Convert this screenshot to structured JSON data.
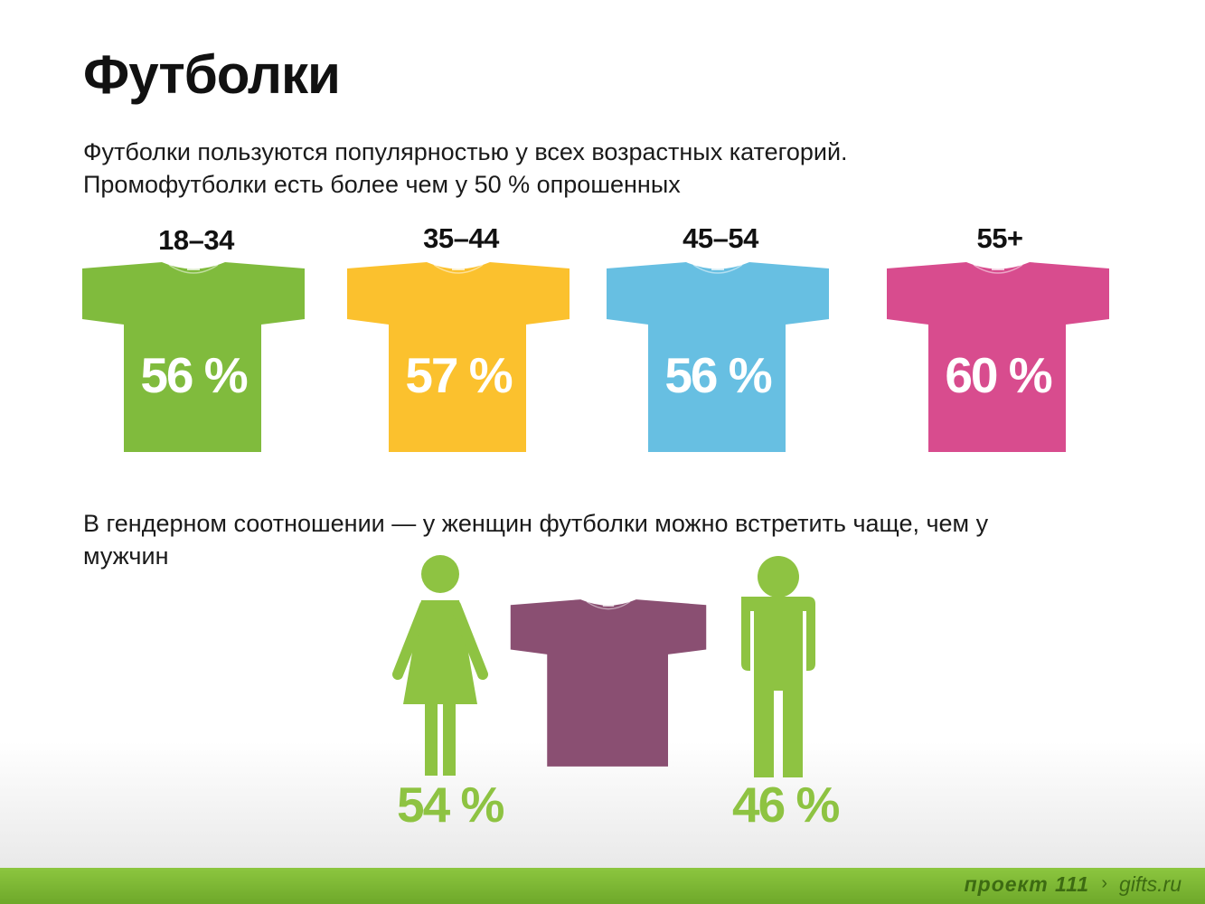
{
  "title": "Футболки",
  "intro": {
    "line1": "Футболки пользуются популярностью у всех возрастных категорий.",
    "line2": "Промофутболки есть более чем у 50 % опрошенных"
  },
  "colors": {
    "green": "#80bb3d",
    "yellow": "#fbc12e",
    "blue": "#67bfe2",
    "pink": "#d84c8e",
    "purple": "#8a4f72",
    "figure_green": "#8ec342"
  },
  "chart_data": {
    "type": "bar",
    "categories": [
      "18–34",
      "35–44",
      "45–54",
      "55+"
    ],
    "values": [
      56,
      57,
      56,
      60
    ],
    "value_labels": [
      "56 %",
      "57 %",
      "56 %",
      "60 %"
    ],
    "unit": "%"
  },
  "gender": {
    "text_line1": "В гендерном соотношении — у женщин футболки можно встретить чаще, чем у",
    "text_line2": "мужчин",
    "female_value": 54,
    "male_value": 46,
    "female_label": "54 %",
    "male_label": "46 %",
    "female_icon": "woman-icon",
    "male_icon": "man-icon"
  },
  "footer": {
    "logo": "проект 111",
    "site": "gifts.ru"
  }
}
